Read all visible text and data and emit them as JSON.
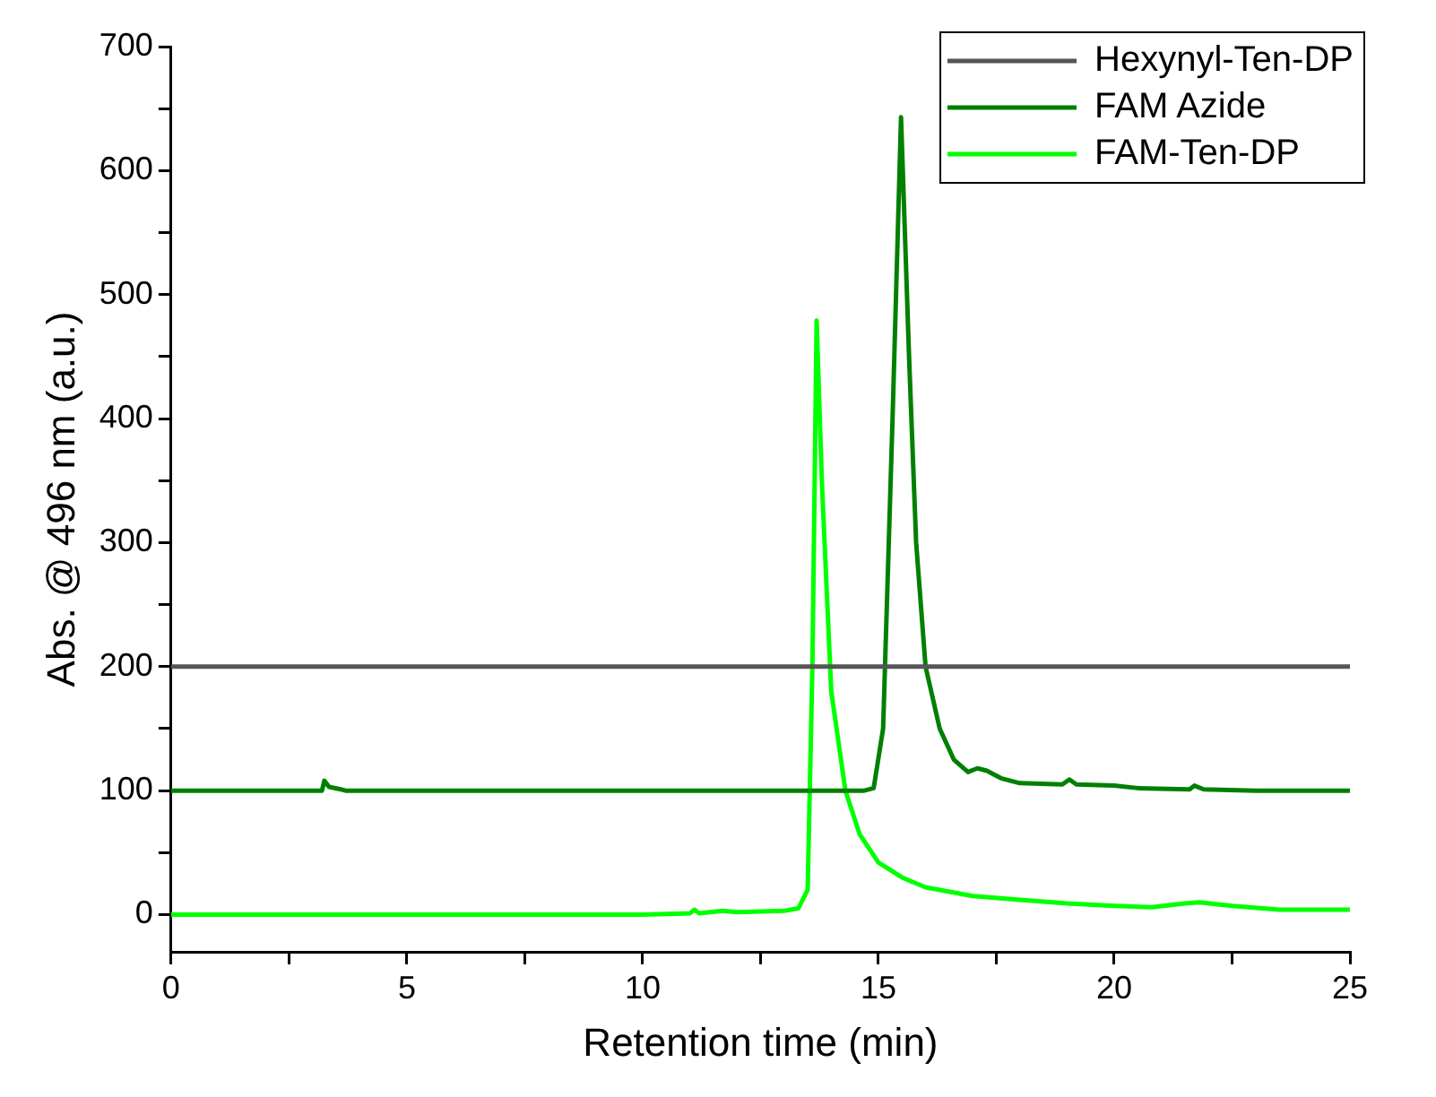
{
  "chart_data": {
    "type": "line",
    "xlabel": "Retention time (min)",
    "ylabel": "Abs. @ 496 nm (a.u.)",
    "xlim": [
      0,
      25
    ],
    "xticks": [
      0,
      {
        "value": 2.5,
        "label": null
      },
      5,
      {
        "value": 7.5,
        "label": null
      },
      10,
      {
        "value": 12.5,
        "label": null
      },
      15,
      {
        "value": 17.5,
        "label": null
      },
      20,
      {
        "value": 22.5,
        "label": null
      },
      25
    ],
    "ylim": [
      -30,
      700
    ],
    "yticks": [
      0,
      {
        "value": 50,
        "label": null
      },
      100,
      {
        "value": 150,
        "label": null
      },
      200,
      {
        "value": 250,
        "label": null
      },
      300,
      {
        "value": 350,
        "label": null
      },
      400,
      {
        "value": 450,
        "label": null
      },
      500,
      {
        "value": 550,
        "label": null
      },
      600,
      {
        "value": 650,
        "label": null
      },
      700
    ],
    "grid": false,
    "legend": "top right",
    "marker": "none",
    "line_style": "solid",
    "series": [
      {
        "name": "Hexynyl-Ten-DP",
        "color": "#555555",
        "x": [
          0,
          25
        ],
        "values": [
          200,
          200
        ]
      },
      {
        "name": "FAM Azide",
        "color": "#008000",
        "x": [
          0,
          3.2,
          3.25,
          3.35,
          3.6,
          3.7,
          14.7,
          14.9,
          15.1,
          15.3,
          15.48,
          15.65,
          15.8,
          16,
          16.3,
          16.6,
          16.9,
          17.1,
          17.3,
          17.6,
          18,
          18.9,
          19.05,
          19.2,
          20,
          20.5,
          21.6,
          21.7,
          21.9,
          23,
          25
        ],
        "values": [
          100,
          100,
          108,
          103,
          101,
          100,
          100,
          102,
          150,
          400,
          643,
          450,
          300,
          200,
          150,
          125,
          115,
          118,
          116,
          110,
          106,
          105,
          109,
          105,
          104,
          102,
          101,
          104,
          101,
          100,
          100
        ]
      },
      {
        "name": "FAM-Ten-DP",
        "color": "#00ff00",
        "x": [
          0,
          10,
          11,
          11.1,
          11.2,
          11.7,
          12,
          13,
          13.3,
          13.5,
          13.6,
          13.69,
          13.8,
          14,
          14.3,
          14.6,
          15,
          15.5,
          16,
          17,
          18,
          19,
          20,
          20.8,
          21.5,
          21.8,
          22.5,
          23.5,
          25
        ],
        "values": [
          0,
          0,
          1,
          4,
          1,
          3,
          2,
          3,
          5,
          20,
          200,
          479,
          350,
          180,
          100,
          65,
          42,
          30,
          22,
          15,
          12,
          9,
          7,
          6,
          9,
          10,
          7,
          4,
          4
        ]
      }
    ]
  }
}
